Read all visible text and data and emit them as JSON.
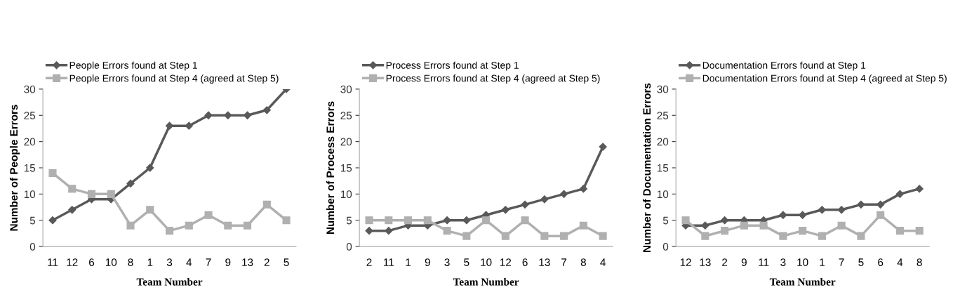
{
  "chart_data": [
    {
      "type": "line",
      "xlabel": "Team Number",
      "ylabel": "Number of People Errors",
      "categories": [
        "11",
        "12",
        "6",
        "10",
        "8",
        "1",
        "3",
        "4",
        "7",
        "9",
        "13",
        "2",
        "5"
      ],
      "ylim": [
        0,
        30
      ],
      "yticks": [
        0,
        5,
        10,
        15,
        20,
        25,
        30
      ],
      "legend": "top",
      "grid": false,
      "series": [
        {
          "name": "People Errors found at Step 1",
          "color": "#595959",
          "marker": "diamond",
          "values": [
            5,
            7,
            9,
            9,
            12,
            15,
            23,
            23,
            25,
            25,
            25,
            26,
            30
          ]
        },
        {
          "name": "People Errors found at Step 4 (agreed at Step 5)",
          "color": "#b0b0b0",
          "marker": "square",
          "values": [
            14,
            11,
            10,
            10,
            4,
            7,
            3,
            4,
            6,
            4,
            4,
            8,
            5
          ]
        }
      ]
    },
    {
      "type": "line",
      "xlabel": "Team Number",
      "ylabel": "Number of Process Errors",
      "categories": [
        "2",
        "11",
        "1",
        "9",
        "3",
        "5",
        "10",
        "12",
        "6",
        "13",
        "7",
        "8",
        "4"
      ],
      "ylim": [
        0,
        30
      ],
      "yticks": [
        0,
        5,
        10,
        15,
        20,
        25,
        30
      ],
      "legend": "top",
      "grid": false,
      "series": [
        {
          "name": "Process Errors found at Step 1",
          "color": "#595959",
          "marker": "diamond",
          "values": [
            3,
            3,
            4,
            4,
            5,
            5,
            6,
            7,
            8,
            9,
            10,
            11,
            19
          ]
        },
        {
          "name": "Process Errors found at Step 4 (agreed at Step 5)",
          "color": "#b0b0b0",
          "marker": "square",
          "values": [
            5,
            5,
            5,
            5,
            3,
            2,
            5,
            2,
            5,
            2,
            2,
            4,
            2
          ]
        }
      ]
    },
    {
      "type": "line",
      "xlabel": "Team Number",
      "ylabel": "Number of Documentation Errors",
      "categories": [
        "12",
        "13",
        "2",
        "9",
        "11",
        "3",
        "10",
        "1",
        "7",
        "5",
        "6",
        "4",
        "8"
      ],
      "ylim": [
        0,
        30
      ],
      "yticks": [
        0,
        5,
        10,
        15,
        20,
        25,
        30
      ],
      "legend": "top",
      "grid": false,
      "series": [
        {
          "name": "Documentation Errors found at Step 1",
          "color": "#595959",
          "marker": "diamond",
          "values": [
            4,
            4,
            5,
            5,
            5,
            6,
            6,
            7,
            7,
            8,
            8,
            10,
            11
          ]
        },
        {
          "name": "Documentation Errors found at Step 4 (agreed at Step 5)",
          "color": "#b0b0b0",
          "marker": "square",
          "values": [
            5,
            2,
            3,
            4,
            4,
            2,
            3,
            2,
            4,
            2,
            6,
            3,
            3
          ]
        }
      ]
    }
  ]
}
